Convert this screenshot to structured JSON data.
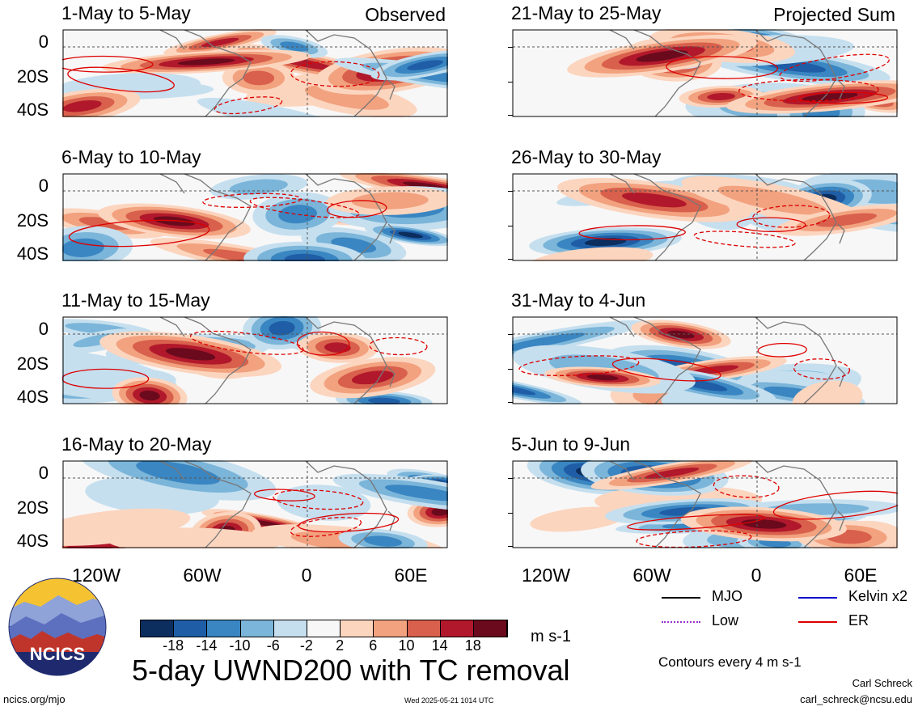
{
  "chart_data": {
    "type": "heatmap",
    "title": "5-day UWND200 with TC removal",
    "units": "m s-1",
    "contour_note": "Contours every 4 m s-1",
    "colorbar_levels": [
      -18,
      -14,
      -10,
      -6,
      -2,
      2,
      6,
      10,
      14,
      18
    ],
    "colorbar_colors": [
      "#0b2e5e",
      "#1f5ea6",
      "#3a86c2",
      "#7bb5d9",
      "#c5dfef",
      "#f7f7f7",
      "#fcd5bf",
      "#f2a27f",
      "#d8604c",
      "#b2182b",
      "#6b0a1d"
    ],
    "x_ticks": [
      "120W",
      "60W",
      "0",
      "60E"
    ],
    "y_ticks": [
      "0",
      "20S",
      "40S"
    ],
    "panels": [
      {
        "title": "1-May to 5-May",
        "label": "Observed"
      },
      {
        "title": "6-May to 10-May",
        "label": ""
      },
      {
        "title": "11-May to 15-May",
        "label": ""
      },
      {
        "title": "16-May to 20-May",
        "label": ""
      },
      {
        "title": "21-May to 25-May",
        "label": "Projected Sum"
      },
      {
        "title": "26-May to 30-May",
        "label": ""
      },
      {
        "title": "31-May to 4-Jun",
        "label": ""
      },
      {
        "title": "5-Jun to 9-Jun",
        "label": ""
      }
    ],
    "legend": [
      {
        "name": "MJO",
        "color": "#000000"
      },
      {
        "name": "Kelvin x2",
        "color": "#0000cc"
      },
      {
        "name": "Low",
        "color": "#9933cc"
      },
      {
        "name": "ER",
        "color": "#dd0000"
      }
    ]
  },
  "logo_text": "NCICS",
  "footer": {
    "url": "ncics.org/mjo",
    "timestamp": "Wed 2025-05-21 1014 UTC",
    "author": "Carl Schreck",
    "email": "carl_schreck@ncsu.edu"
  }
}
